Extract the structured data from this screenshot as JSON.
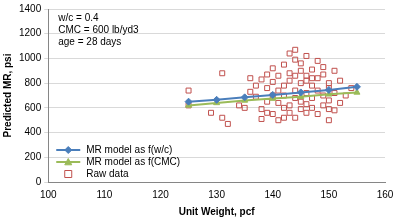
{
  "chart_data": {
    "type": "scatter",
    "x_label": "Unit Weight, pcf",
    "y_label": "Predicted MR, psi",
    "annotations": [
      "w/c = 0.4",
      "CMC = 600 lb/yd3",
      "age = 28 days"
    ],
    "xlim": [
      100,
      160
    ],
    "xticks": [
      100,
      110,
      120,
      130,
      140,
      150,
      160
    ],
    "ylim": [
      0,
      1400
    ],
    "yticks": [
      0,
      200,
      400,
      600,
      800,
      1000,
      1200,
      1400
    ],
    "grid": "y",
    "legend": "lower left",
    "series": [
      {
        "name": "MR model as f(w/c)",
        "color": "#4a7ebb",
        "marker": "diamond",
        "line_style": "solid",
        "x": [
          125,
          130,
          135,
          140,
          145,
          150,
          155
        ],
        "values": [
          650,
          665,
          685,
          705,
          725,
          745,
          770
        ]
      },
      {
        "name": "MR model as f(CMC)",
        "color": "#9bbb59",
        "marker": "triangle",
        "line_style": "solid",
        "x": [
          125,
          130,
          135,
          140,
          145,
          150,
          155
        ],
        "values": [
          620,
          640,
          660,
          675,
          690,
          710,
          725
        ]
      },
      {
        "name": "Raw data",
        "color": "#c0504d",
        "marker": "open square",
        "line_style": "none",
        "x": [
          125,
          125,
          129,
          131,
          131,
          132,
          134,
          135,
          136,
          136,
          137,
          137,
          138,
          138,
          138,
          139,
          139,
          139,
          140,
          140,
          140,
          140,
          141,
          141,
          141,
          141,
          142,
          142,
          142,
          142,
          143,
          143,
          143,
          143,
          143,
          144,
          144,
          144,
          144,
          144,
          145,
          145,
          145,
          145,
          145,
          146,
          146,
          146,
          146,
          146,
          147,
          147,
          147,
          147,
          148,
          148,
          148,
          148,
          149,
          149,
          149,
          149,
          150,
          150,
          150,
          150,
          151,
          151,
          151,
          152,
          152,
          153,
          154,
          146,
          144,
          142,
          139,
          147,
          150
        ],
        "values": [
          740,
          620,
          560,
          880,
          520,
          470,
          620,
          600,
          730,
          840,
          690,
          780,
          590,
          830,
          510,
          650,
          760,
          870,
          700,
          550,
          920,
          810,
          640,
          740,
          860,
          500,
          600,
          700,
          950,
          780,
          1040,
          880,
          620,
          560,
          820,
          1070,
          990,
          740,
          680,
          520,
          900,
          650,
          800,
          590,
          960,
          860,
          720,
          560,
          1020,
          630,
          780,
          680,
          910,
          600,
          840,
          740,
          550,
          980,
          700,
          870,
          620,
          930,
          800,
          660,
          500,
          760,
          720,
          900,
          580,
          820,
          640,
          700,
          760,
          820,
          860,
          520,
          560,
          840,
          590
        ]
      }
    ]
  }
}
